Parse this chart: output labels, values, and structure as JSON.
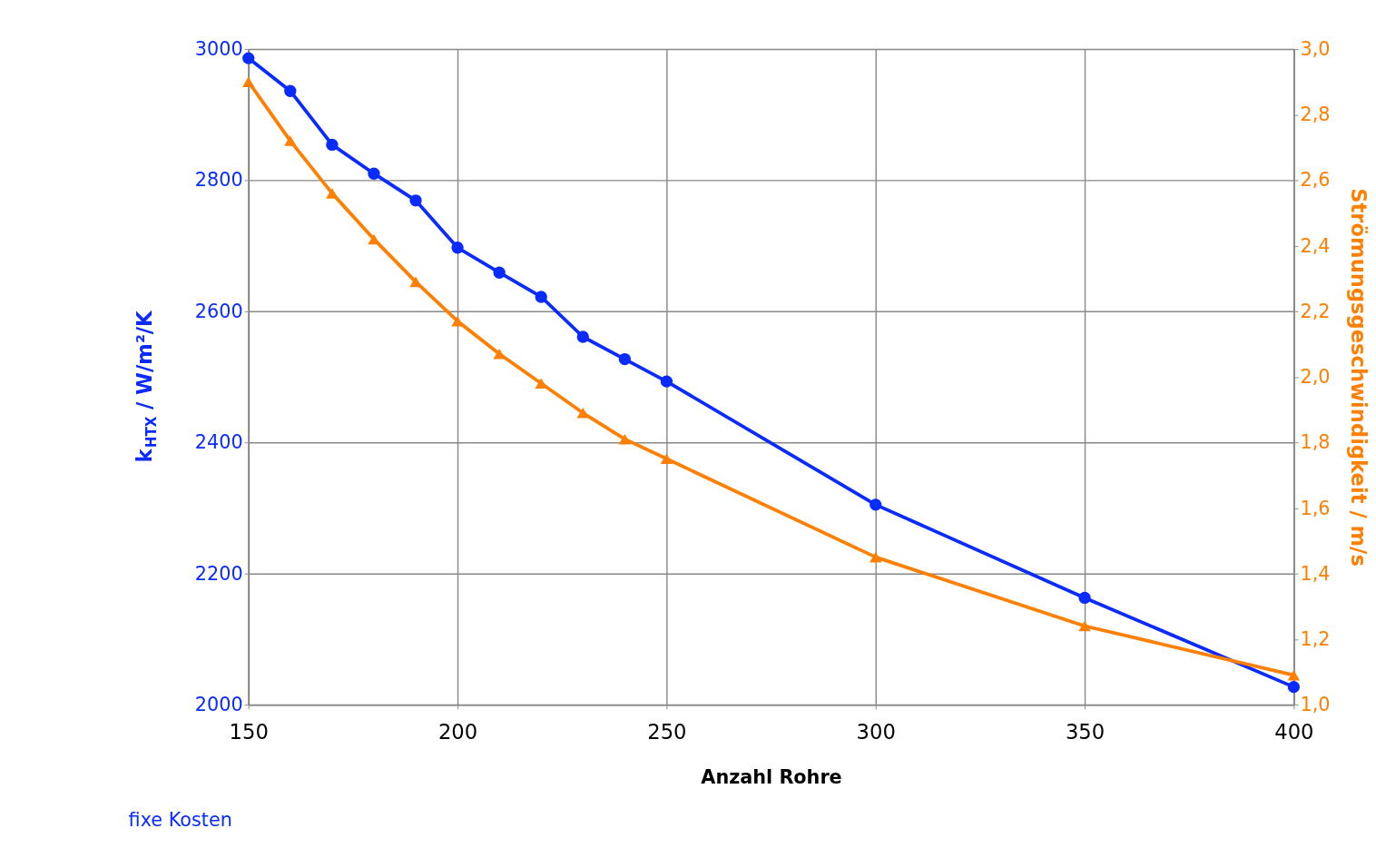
{
  "chart_data": {
    "type": "line",
    "xlabel": "Anzahl Rohre",
    "ylabel": "k$_{HTX}$ / W/m²/K",
    "y2label": "Strömungsgeschwindigkeit / m/s",
    "annotations": [
      "fixe Kosten"
    ],
    "xlim": [
      150,
      400
    ],
    "xticks": [
      150,
      200,
      250,
      300,
      350,
      400
    ],
    "ylim": [
      2000,
      3000
    ],
    "yticks": [
      2000,
      2200,
      2400,
      2600,
      2800,
      3000
    ],
    "y2lim": [
      1.0,
      3.0
    ],
    "y2ticks": [
      {
        "value": 1.0,
        "label": "1,0"
      },
      {
        "value": 1.2,
        "label": "1,2"
      },
      {
        "value": 1.4,
        "label": "1,4"
      },
      {
        "value": 1.6,
        "label": "1,6"
      },
      {
        "value": 1.8,
        "label": "1,8"
      },
      {
        "value": 2.0,
        "label": "2,0"
      },
      {
        "value": 2.2,
        "label": "2,2"
      },
      {
        "value": 2.4,
        "label": "2,4"
      },
      {
        "value": 2.6,
        "label": "2,6"
      },
      {
        "value": 2.8,
        "label": "2,8"
      },
      {
        "value": 3.0,
        "label": "3,0"
      }
    ],
    "x": [
      150,
      160,
      170,
      180,
      190,
      200,
      210,
      220,
      230,
      240,
      250,
      300,
      350,
      400
    ],
    "grid": true,
    "legend": false,
    "line_style": "solid",
    "series": [
      {
        "color": "#0a2bff",
        "marker": "circle",
        "values": [
          2986,
          2936,
          2854,
          2810,
          2769,
          2697,
          2659,
          2622,
          2561,
          2527,
          2493,
          2305,
          2163,
          2027
        ]
      },
      {
        "color": "#ff7f00",
        "marker": "triangle",
        "axis": "y2",
        "values": [
          2.9,
          2.72,
          2.56,
          2.42,
          2.29,
          2.17,
          2.07,
          1.98,
          1.89,
          1.81,
          1.75,
          1.45,
          1.24,
          1.09
        ]
      }
    ]
  }
}
